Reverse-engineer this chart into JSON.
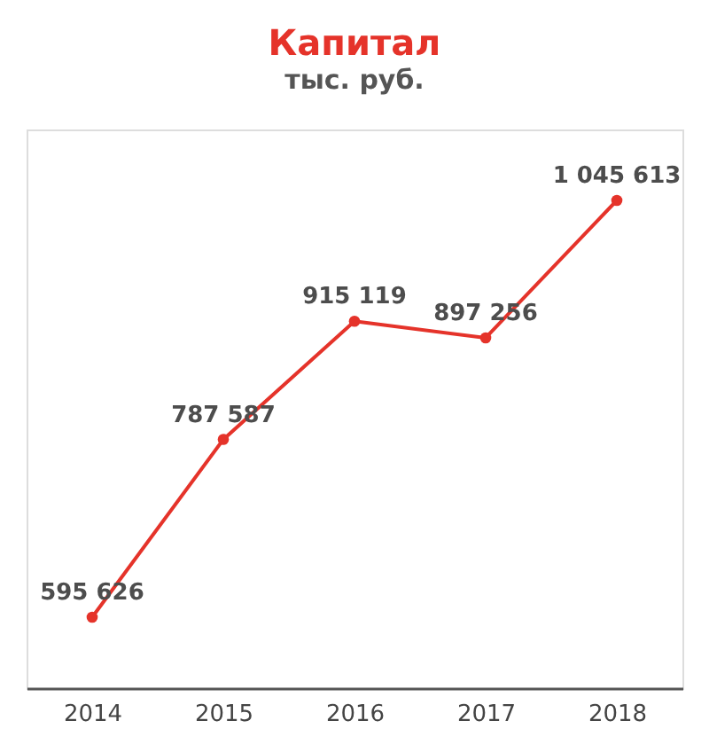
{
  "chart_data": {
    "type": "line",
    "title": "Капитал",
    "subtitle": "тыс. руб.",
    "categories": [
      "2014",
      "2015",
      "2016",
      "2017",
      "2018"
    ],
    "series": [
      {
        "color": "#e5332a",
        "values": [
          595626,
          787587,
          915119,
          897256,
          1045613
        ],
        "value_labels": [
          "595 626",
          "787 587",
          "915 119",
          "897 256",
          "1 045 613"
        ]
      }
    ],
    "marker": "circle",
    "line_style": "solid",
    "grid": false,
    "tick_labels": "x"
  }
}
